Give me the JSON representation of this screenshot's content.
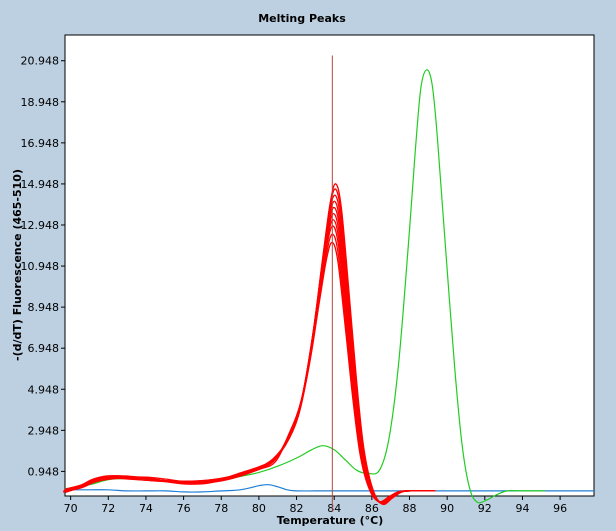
{
  "chart_data": {
    "type": "line",
    "title": "Melting Peaks",
    "xlabel": "Temperature (°C)",
    "ylabel": "-(d/dT) Fluorescence (465-510)",
    "xlim": [
      69.7,
      97.8
    ],
    "ylim": [
      -0.25,
      22.2
    ],
    "x_ticks": [
      70,
      72,
      74,
      76,
      78,
      80,
      82,
      84,
      86,
      88,
      90,
      92,
      94,
      96
    ],
    "x_tick_labels": [
      "70",
      "72",
      "74",
      "76",
      "78",
      "80",
      "82",
      "84",
      "86",
      "88",
      "90",
      "92",
      "94",
      "96"
    ],
    "y_ticks": [
      0.948,
      2.948,
      4.948,
      6.948,
      8.948,
      10.948,
      12.948,
      14.948,
      16.948,
      18.948,
      20.948
    ],
    "y_tick_labels": [
      "0.948",
      "2.948",
      "4.948",
      "6.948",
      "8.948",
      "10.948",
      "12.948",
      "14.948",
      "16.948",
      "18.948",
      "20.948"
    ],
    "grid": false,
    "cursor_x": 83.9,
    "colors": {
      "red_curves": "#ff0000",
      "green_curve": "#22cc22",
      "blue_curve": "#1f7fd6",
      "cursor": "#b24a3a",
      "background": "#bcd0e2"
    },
    "red_family": {
      "x": [
        69.7,
        70.5,
        71.2,
        72,
        73,
        74,
        75,
        76,
        77,
        78,
        79,
        80,
        80.8,
        81.5,
        82.2,
        82.8,
        83.3,
        83.7,
        84.0,
        84.3,
        84.7,
        85.1,
        85.5,
        86.0,
        86.5,
        87.0,
        87.5,
        88.0,
        88.5,
        89.3
      ],
      "base": [
        0.0,
        0.2,
        0.5,
        0.65,
        0.65,
        0.6,
        0.5,
        0.42,
        0.42,
        0.55,
        0.8,
        1.1,
        1.5,
        2.3,
        3.8,
        6.5,
        9.5,
        11.8,
        12.6,
        11.6,
        8.2,
        4.6,
        1.7,
        0.0,
        -0.55,
        -0.3,
        -0.05,
        0.0,
        0.0,
        0.0
      ],
      "peaks": [
        12.1,
        12.5,
        12.9,
        13.2,
        13.5,
        13.8,
        14.1,
        14.4,
        14.7,
        14.95
      ]
    },
    "series": [
      {
        "x": [
          69.7,
          71,
          72,
          73,
          74,
          75,
          76,
          77,
          78,
          79,
          80,
          81,
          82,
          82.8,
          83.4,
          84.0,
          84.6,
          85.2,
          85.8,
          86.4,
          86.9,
          87.4,
          87.9,
          88.3,
          88.6,
          88.9,
          89.2,
          89.5,
          89.9,
          90.4,
          90.8,
          91.2,
          91.6,
          92.1,
          92.6,
          93.2,
          94,
          95.2
        ],
        "y": [
          0.1,
          0.3,
          0.55,
          0.6,
          0.55,
          0.5,
          0.45,
          0.45,
          0.55,
          0.7,
          0.9,
          1.2,
          1.6,
          2.0,
          2.2,
          2.0,
          1.5,
          1.0,
          0.85,
          1.0,
          2.5,
          6.0,
          11.5,
          16.5,
          19.6,
          20.5,
          19.8,
          17.0,
          12.0,
          6.0,
          2.2,
          0.1,
          -0.55,
          -0.45,
          -0.2,
          0.0,
          0.0,
          0.0
        ]
      },
      {
        "x": [
          69.7,
          71,
          72,
          73,
          74,
          75,
          76,
          77,
          78,
          79,
          80,
          80.5,
          81,
          81.5,
          82,
          83,
          84,
          86,
          88,
          90,
          92,
          94,
          96,
          97.8
        ],
        "y": [
          0.05,
          0.05,
          0.05,
          0.0,
          0.0,
          0.0,
          -0.05,
          -0.05,
          0.0,
          0.05,
          0.25,
          0.3,
          0.2,
          0.05,
          0.0,
          0.0,
          0.0,
          0.0,
          0.0,
          0.0,
          0.0,
          0.0,
          0.0,
          0.0
        ]
      }
    ]
  }
}
